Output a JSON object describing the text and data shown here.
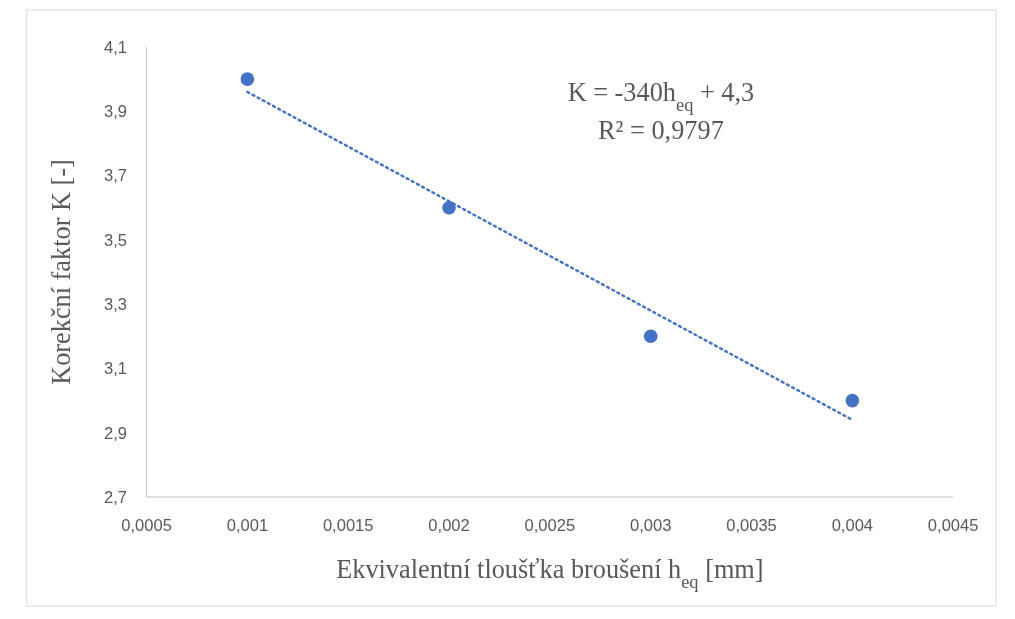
{
  "chart_data": {
    "type": "scatter",
    "xlabel": "Ekvivalentní tloušťka broušení h$_{eq}$ [mm]",
    "ylabel": "Korekční faktor K [-]",
    "xlim": [
      0.0005,
      0.0045
    ],
    "xticks": [
      {
        "value": 0.0005,
        "label": "0,0005"
      },
      {
        "value": 0.001,
        "label": "0,001"
      },
      {
        "value": 0.0015,
        "label": "0,0015"
      },
      {
        "value": 0.002,
        "label": "0,002"
      },
      {
        "value": 0.0025,
        "label": "0,0025"
      },
      {
        "value": 0.003,
        "label": "0,003"
      },
      {
        "value": 0.0035,
        "label": "0,0035"
      },
      {
        "value": 0.004,
        "label": "0,004"
      },
      {
        "value": 0.0045,
        "label": "0,0045"
      }
    ],
    "ylim": [
      2.7,
      4.1
    ],
    "yticks": [
      {
        "value": 2.7,
        "label": "2,7"
      },
      {
        "value": 2.9,
        "label": "2,9"
      },
      {
        "value": 3.1,
        "label": "3,1"
      },
      {
        "value": 3.3,
        "label": "3,3"
      },
      {
        "value": 3.5,
        "label": "3,5"
      },
      {
        "value": 3.7,
        "label": "3,7"
      },
      {
        "value": 3.9,
        "label": "3,9"
      },
      {
        "value": 4.1,
        "label": "4,1"
      }
    ],
    "series": [
      {
        "color": "#4472c4",
        "marker": "circle",
        "x": [
          0.001,
          0.002,
          0.003,
          0.004
        ],
        "values": [
          4.0,
          3.6,
          3.2,
          3.0
        ]
      },
      {
        "type": "line",
        "color": "#4472c4",
        "marker": "none",
        "line_style": "dotted",
        "x": [
          0.001,
          0.004
        ],
        "values": [
          3.96,
          2.94
        ]
      }
    ],
    "annotations": [
      "K = -340h$_{eq}$ + 4,3",
      "R² = 0,9797"
    ]
  }
}
